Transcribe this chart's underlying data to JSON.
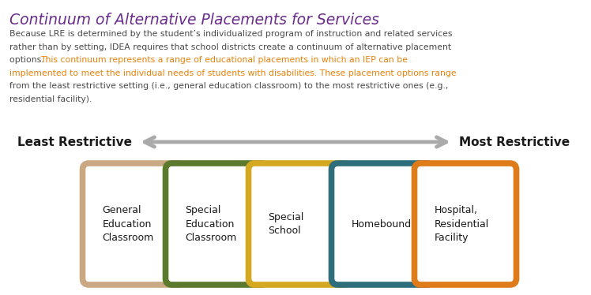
{
  "title": "Continuum of Alternative Placements for Services",
  "title_color": "#6B2D8B",
  "body_lines": [
    [
      [
        "Because LRE is determined by the student’s individualized program of instruction and related services",
        false
      ]
    ],
    [
      [
        "rather than by setting, IDEA requires that school districts create a continuum of alternative placement",
        false
      ]
    ],
    [
      [
        "options. ",
        false
      ],
      [
        "This continuum represents a range of educational placements in which an IEP can be",
        true
      ]
    ],
    [
      [
        "implemented to meet the individual needs of students with disabilities. These placement options range",
        true
      ]
    ],
    [
      [
        "from the least restrictive setting (i.e., general education classroom) to the most restrictive ones (e.g.,",
        false
      ]
    ],
    [
      [
        "residential facility).",
        false
      ]
    ]
  ],
  "body_color": "#4a4a4a",
  "highlight_color": "#E8810A",
  "label_left": "Least Restrictive",
  "label_right": "Most Restrictive",
  "arrow_color": "#aaaaaa",
  "boxes": [
    {
      "label": "General\nEducation\nClassroom",
      "color": "#C9A882"
    },
    {
      "label": "Special\nEducation\nClassroom",
      "color": "#5B7A2E"
    },
    {
      "label": "Special\nSchool",
      "color": "#D4A820"
    },
    {
      "label": "Homebound",
      "color": "#2E6E7A"
    },
    {
      "label": "Hospital,\nResidential\nFacility",
      "color": "#E07B1A"
    }
  ],
  "background_color": "#ffffff"
}
